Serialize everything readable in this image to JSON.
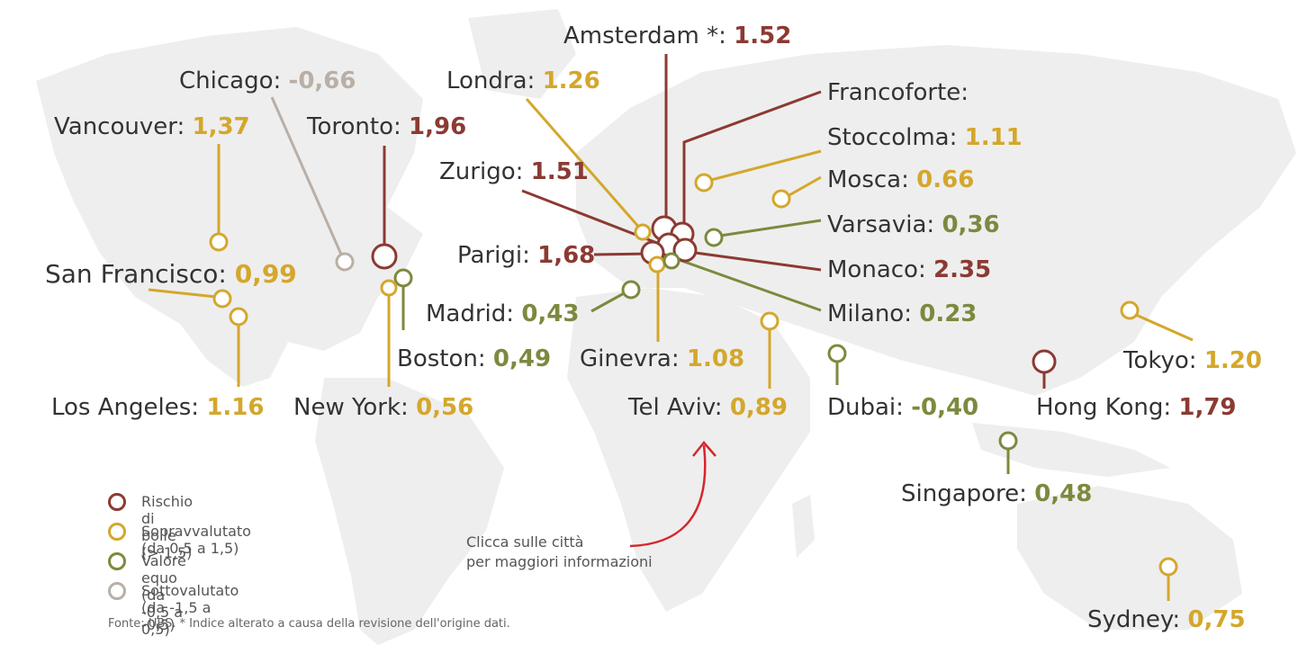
{
  "colors": {
    "bubble": "#8b3a33",
    "overvalued": "#d4a72c",
    "fair": "#7b8a3e",
    "undervalued": "#b9afa6",
    "arrow": "#d7262c",
    "land": "#ececec"
  },
  "cities": [
    {
      "key": "amsterdam",
      "city": "Amsterdam *:",
      "value": "1.52",
      "cls": "bubble"
    },
    {
      "key": "chicago",
      "city": "Chicago:",
      "value": "-0,66",
      "cls": "under"
    },
    {
      "key": "londra",
      "city": "Londra:",
      "value": "1.26",
      "cls": "over"
    },
    {
      "key": "francoforte",
      "city": "Francoforte:",
      "value": "",
      "cls": "bubble"
    },
    {
      "key": "vancouver",
      "city": "Vancouver:",
      "value": "1,37",
      "cls": "over"
    },
    {
      "key": "toronto",
      "city": "Toronto:",
      "value": "1,96",
      "cls": "bubble"
    },
    {
      "key": "stoccolma",
      "city": "Stoccolma:",
      "value": "1.11",
      "cls": "over"
    },
    {
      "key": "zurigo",
      "city": "Zurigo:",
      "value": "1.51",
      "cls": "bubble"
    },
    {
      "key": "mosca",
      "city": "Mosca:",
      "value": "0.66",
      "cls": "over"
    },
    {
      "key": "varsavia",
      "city": "Varsavia:",
      "value": "0,36",
      "cls": "fair"
    },
    {
      "key": "parigi",
      "city": "Parigi:",
      "value": "1,68",
      "cls": "bubble"
    },
    {
      "key": "monaco",
      "city": "Monaco:",
      "value": "2.35",
      "cls": "bubble"
    },
    {
      "key": "sanfrancisco",
      "city": "San Francisco:",
      "value": "0,99",
      "cls": "over"
    },
    {
      "key": "madrid",
      "city": "Madrid:",
      "value": "0,43",
      "cls": "fair"
    },
    {
      "key": "milano",
      "city": "Milano:",
      "value": "0.23",
      "cls": "fair"
    },
    {
      "key": "boston",
      "city": "Boston:",
      "value": "0,49",
      "cls": "fair"
    },
    {
      "key": "ginevra",
      "city": "Ginevra:",
      "value": "1.08",
      "cls": "over"
    },
    {
      "key": "tokyo",
      "city": "Tokyo:",
      "value": "1.20",
      "cls": "over"
    },
    {
      "key": "losangeles",
      "city": "Los Angeles:",
      "value": "1.16",
      "cls": "over"
    },
    {
      "key": "newyork",
      "city": "New York:",
      "value": "0,56",
      "cls": "over"
    },
    {
      "key": "telaviv",
      "city": "Tel Aviv:",
      "value": "0,89",
      "cls": "over"
    },
    {
      "key": "dubai",
      "city": "Dubai:",
      "value": "-0,40",
      "cls": "fair"
    },
    {
      "key": "hongkong",
      "city": "Hong Kong:",
      "value": "1,79",
      "cls": "bubble"
    },
    {
      "key": "singapore",
      "city": "Singapore:",
      "value": "0,48",
      "cls": "fair"
    },
    {
      "key": "sydney",
      "city": "Sydney:",
      "value": "0,75",
      "cls": "over"
    }
  ],
  "legend": [
    {
      "label": "Rischio di bolle (> 1,5)",
      "cls": "bubble"
    },
    {
      "label": "Sopravvalutato (da 0,5  a  1,5)",
      "cls": "over"
    },
    {
      "label": "Valore equo (da -0,5 a 0,5)",
      "cls": "fair"
    },
    {
      "label": "Sottovalutato (da -1,5 a -0,5)",
      "cls": "under"
    }
  ],
  "cta": {
    "line1": "Clicca sulle città",
    "line2": "per maggiori informazioni"
  },
  "source": "Fonte: UBS. * Indice alterato a causa della revisione dell'origine dati."
}
